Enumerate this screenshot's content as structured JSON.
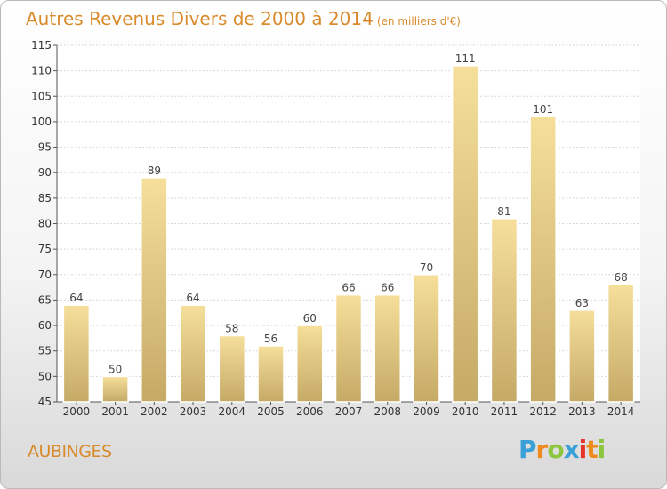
{
  "header": {
    "title": "Autres Revenus Divers de 2000 à 2014",
    "unit": "(en milliers d'€)"
  },
  "footer": {
    "place": "AUBINGES",
    "logo_letters": [
      "P",
      "r",
      "o",
      "x",
      "i",
      "t",
      "i"
    ],
    "logo_colors": [
      "#3aa0d8",
      "#f08a1c",
      "#8cc63f",
      "#3aa0d8",
      "#e8332a",
      "#f08a1c",
      "#8cc63f"
    ]
  },
  "colors": {
    "title": "#d98a2b",
    "bar_top": "#f5df9b",
    "bar_bottom": "#c5aa66",
    "grid": "#d8d8d8"
  },
  "chart_data": {
    "type": "bar",
    "title": "Autres Revenus Divers de 2000 à 2014",
    "subtitle": "(en milliers d'€)",
    "xlabel": "",
    "ylabel": "",
    "categories": [
      "2000",
      "2001",
      "2002",
      "2003",
      "2004",
      "2005",
      "2006",
      "2007",
      "2008",
      "2009",
      "2010",
      "2011",
      "2012",
      "2013",
      "2014"
    ],
    "values": [
      64,
      50,
      89,
      64,
      58,
      56,
      60,
      66,
      66,
      70,
      111,
      81,
      101,
      63,
      68
    ],
    "ylim": [
      45,
      115
    ],
    "yticks": [
      45,
      50,
      55,
      60,
      65,
      70,
      75,
      80,
      85,
      90,
      95,
      100,
      105,
      110,
      115
    ],
    "grid": true,
    "legend": "none"
  }
}
